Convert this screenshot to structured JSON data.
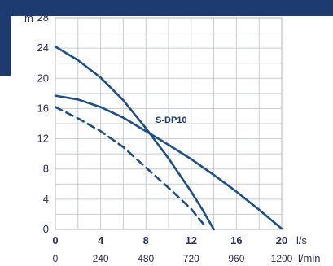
{
  "colors": {
    "band": "#1d3b6e",
    "grid": "#c8ccd2",
    "curve": "#1d4f86",
    "text": "#2a2f5a"
  },
  "chart_data": {
    "type": "line",
    "ylabel": "m",
    "xlabel": "l/s",
    "x2label": "l/min",
    "xlim": [
      0,
      20
    ],
    "ylim": [
      0,
      28
    ],
    "x_ticks": [
      0,
      4,
      8,
      12,
      16,
      20
    ],
    "y_ticks": [
      0,
      4,
      8,
      12,
      16,
      20,
      24,
      28
    ],
    "x_grid": [
      0,
      2,
      4,
      6,
      8,
      10,
      12,
      14,
      16,
      18,
      20
    ],
    "y_grid": [
      0,
      2,
      4,
      6,
      8,
      10,
      12,
      14,
      16,
      18,
      20,
      22,
      24,
      26,
      28
    ],
    "x2_ticks": [
      {
        "x": 0,
        "label": "0"
      },
      {
        "x": 4,
        "label": "240"
      },
      {
        "x": 8,
        "label": "480"
      },
      {
        "x": 12,
        "label": "720"
      },
      {
        "x": 16,
        "label": "960"
      },
      {
        "x": 20,
        "label": "1200"
      }
    ],
    "series": [
      {
        "name": "S-DP10",
        "style": "solid",
        "points": [
          [
            0,
            17.7
          ],
          [
            2,
            17.2
          ],
          [
            4,
            16.2
          ],
          [
            6,
            14.8
          ],
          [
            8,
            13.0
          ],
          [
            10,
            11.2
          ],
          [
            12,
            9.3
          ],
          [
            14,
            7.2
          ],
          [
            16,
            5.0
          ],
          [
            18,
            2.6
          ],
          [
            20,
            0.1
          ]
        ]
      },
      {
        "style": "solid",
        "points": [
          [
            0,
            24.2
          ],
          [
            2,
            22.4
          ],
          [
            4,
            20.1
          ],
          [
            6,
            17.1
          ],
          [
            8,
            13.4
          ],
          [
            10,
            9.4
          ],
          [
            12,
            5.0
          ],
          [
            13,
            2.6
          ],
          [
            14,
            0
          ]
        ]
      },
      {
        "style": "dashed",
        "points": [
          [
            0,
            16.2
          ],
          [
            2,
            14.7
          ],
          [
            4,
            13.0
          ],
          [
            6,
            10.9
          ],
          [
            8,
            8.2
          ],
          [
            10,
            5.5
          ],
          [
            12,
            2.7
          ],
          [
            13.3,
            0.3
          ]
        ]
      }
    ]
  }
}
